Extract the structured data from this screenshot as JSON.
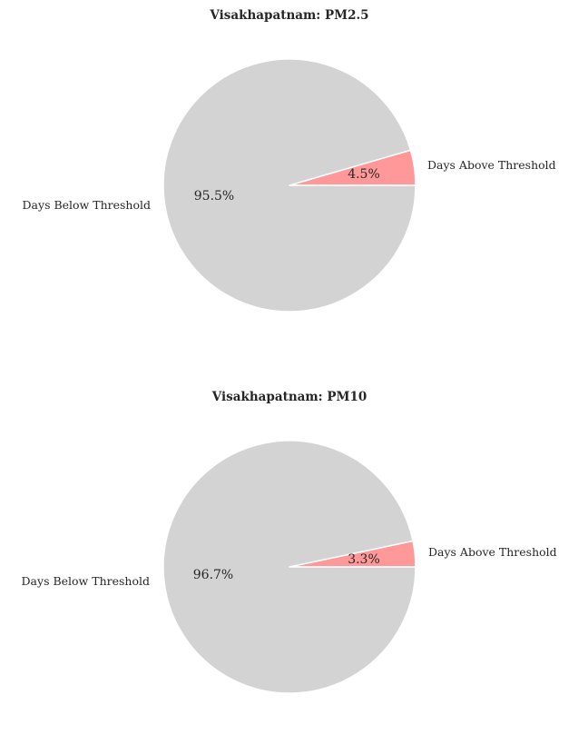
{
  "chart_data": [
    {
      "type": "pie",
      "title": "Visakhapatnam: PM2.5",
      "labels": [
        "Days Above Threshold",
        "Days Below Threshold"
      ],
      "values": [
        4.5,
        95.5
      ],
      "percent_labels": [
        "4.5%",
        "95.5%"
      ],
      "colors": [
        "#ff9999",
        "#d3d3d3"
      ],
      "start_angle": 0,
      "direction": "counterclockwise"
    },
    {
      "type": "pie",
      "title": "Visakhapatnam: PM10",
      "labels": [
        "Days Above Threshold",
        "Days Below Threshold"
      ],
      "values": [
        3.3,
        96.7
      ],
      "percent_labels": [
        "3.3%",
        "96.7%"
      ],
      "colors": [
        "#ff9999",
        "#d3d3d3"
      ],
      "start_angle": 0,
      "direction": "counterclockwise"
    }
  ]
}
